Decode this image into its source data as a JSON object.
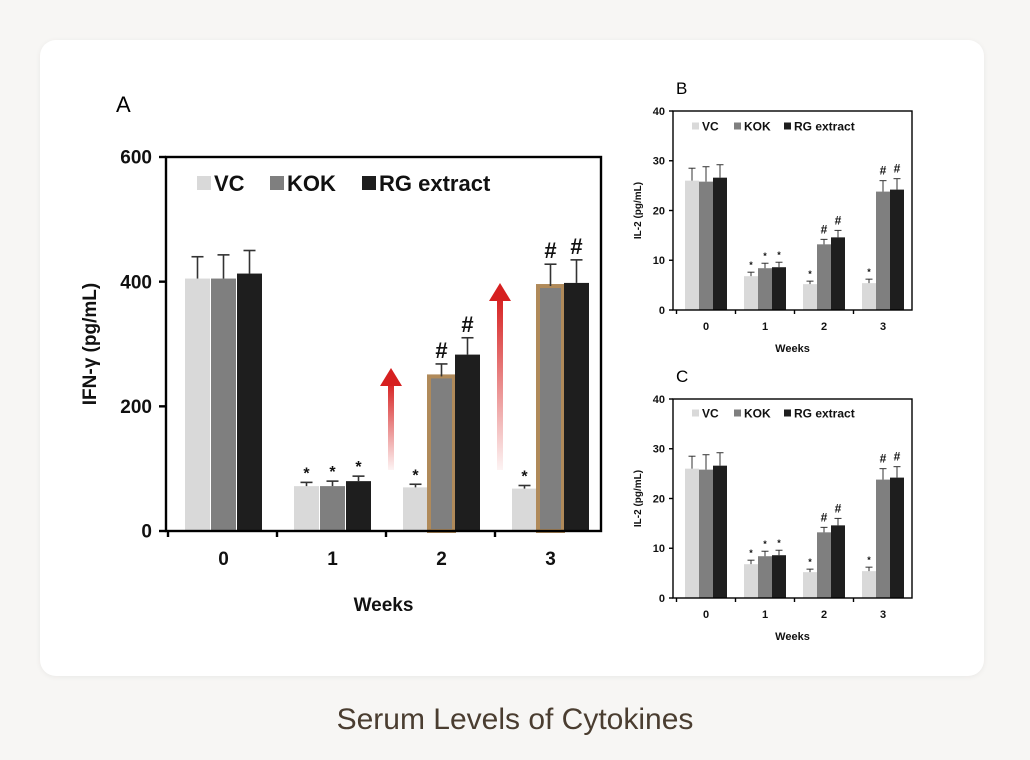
{
  "caption": "Serum Levels of Cytokines",
  "colors": {
    "VC": "#d9d9d9",
    "KOK": "#7f7f7f",
    "RG extract": "#1e1e1e",
    "arrow": "#d62020",
    "highlight": "#b08a5a"
  },
  "chart_data": [
    {
      "panel": "A",
      "type": "bar",
      "categories": [
        "0",
        "1",
        "2",
        "3"
      ],
      "series": [
        {
          "name": "VC",
          "values": [
            405,
            72,
            70,
            68
          ],
          "errors": [
            35,
            6,
            5,
            5
          ],
          "marks": [
            "",
            "*",
            "*",
            "*"
          ]
        },
        {
          "name": "KOK",
          "values": [
            405,
            72,
            248,
            393
          ],
          "errors": [
            38,
            8,
            20,
            35
          ],
          "marks": [
            "",
            "*",
            "#",
            "#"
          ]
        },
        {
          "name": "RG extract",
          "values": [
            413,
            80,
            283,
            398
          ],
          "errors": [
            37,
            8,
            27,
            37
          ],
          "marks": [
            "",
            "*",
            "#",
            "#"
          ]
        }
      ],
      "xlabel": "Weeks",
      "ylabel": "IFN-γ (pg/mL)",
      "ylim": [
        0,
        600
      ],
      "yticks": [
        0,
        200,
        400,
        600
      ],
      "legend": "top-left",
      "annotations": "red arrows and highlighted KOK bars at weeks 2 and 3"
    },
    {
      "panel": "B",
      "type": "bar",
      "categories": [
        "0",
        "1",
        "2",
        "3"
      ],
      "series": [
        {
          "name": "VC",
          "values": [
            26,
            6.8,
            5.2,
            5.4
          ],
          "errors": [
            2.5,
            0.8,
            0.6,
            0.8
          ],
          "marks": [
            "",
            "*",
            "*",
            "*"
          ]
        },
        {
          "name": "KOK",
          "values": [
            25.8,
            8.4,
            13.2,
            23.8
          ],
          "errors": [
            3,
            1,
            1,
            2.2
          ],
          "marks": [
            "",
            "*",
            "#",
            "#"
          ]
        },
        {
          "name": "RG extract",
          "values": [
            26.6,
            8.6,
            14.6,
            24.2
          ],
          "errors": [
            2.6,
            1,
            1.4,
            2.2
          ],
          "marks": [
            "",
            "*",
            "#",
            "#"
          ]
        }
      ],
      "xlabel": "Weeks",
      "ylabel": "IL-2 (pg/mL)",
      "ylim": [
        0,
        40
      ],
      "yticks": [
        0,
        10,
        20,
        30,
        40
      ],
      "legend": "top-left"
    },
    {
      "panel": "C",
      "type": "bar",
      "categories": [
        "0",
        "1",
        "2",
        "3"
      ],
      "series": [
        {
          "name": "VC",
          "values": [
            26,
            6.8,
            5.2,
            5.4
          ],
          "errors": [
            2.5,
            0.8,
            0.6,
            0.8
          ],
          "marks": [
            "",
            "*",
            "*",
            "*"
          ]
        },
        {
          "name": "KOK",
          "values": [
            25.8,
            8.4,
            13.2,
            23.8
          ],
          "errors": [
            3,
            1,
            1,
            2.2
          ],
          "marks": [
            "",
            "*",
            "#",
            "#"
          ]
        },
        {
          "name": "RG extract",
          "values": [
            26.6,
            8.6,
            14.6,
            24.2
          ],
          "errors": [
            2.6,
            1,
            1.4,
            2.2
          ],
          "marks": [
            "",
            "*",
            "#",
            "#"
          ]
        }
      ],
      "xlabel": "Weeks",
      "ylabel": "IL-2 (pg/mL)",
      "ylim": [
        0,
        40
      ],
      "yticks": [
        0,
        10,
        20,
        30,
        40
      ],
      "legend": "top-left"
    }
  ]
}
